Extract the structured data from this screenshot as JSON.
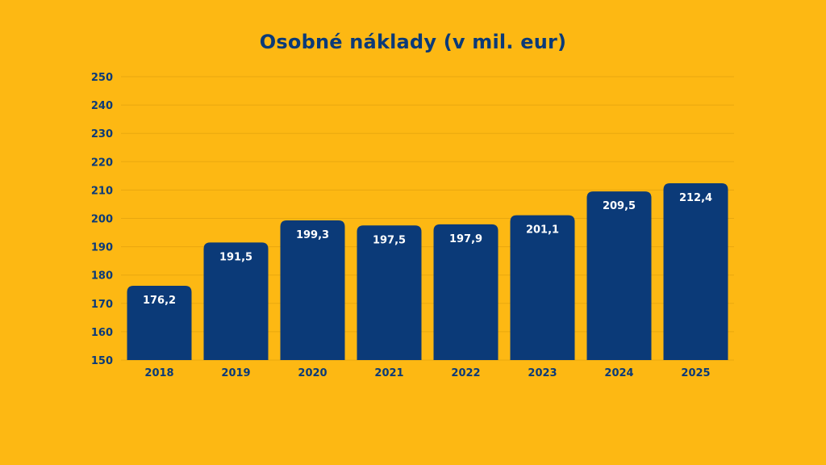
{
  "chart_data": {
    "type": "bar",
    "title": "Osobné náklady (v mil. eur)",
    "xlabel": "",
    "ylabel": "",
    "categories": [
      "2018",
      "2019",
      "2020",
      "2021",
      "2022",
      "2023",
      "2024",
      "2025"
    ],
    "values": [
      176.2,
      191.5,
      199.3,
      197.5,
      197.9,
      201.1,
      209.5,
      212.4
    ],
    "data_labels": [
      "176,2",
      "191,5",
      "199,3",
      "197,5",
      "197,9",
      "201,1",
      "209,5",
      "212,4"
    ],
    "ylim": [
      150,
      250
    ],
    "yticks": [
      150,
      160,
      170,
      180,
      190,
      200,
      210,
      220,
      230,
      240,
      250
    ],
    "grid": true,
    "legend": "none",
    "colors": {
      "background": "#FDB813",
      "bar": "#0B3A78",
      "text": "#0B3A78",
      "data_label": "#FFFFFF",
      "grid": "#E9A70F"
    }
  }
}
